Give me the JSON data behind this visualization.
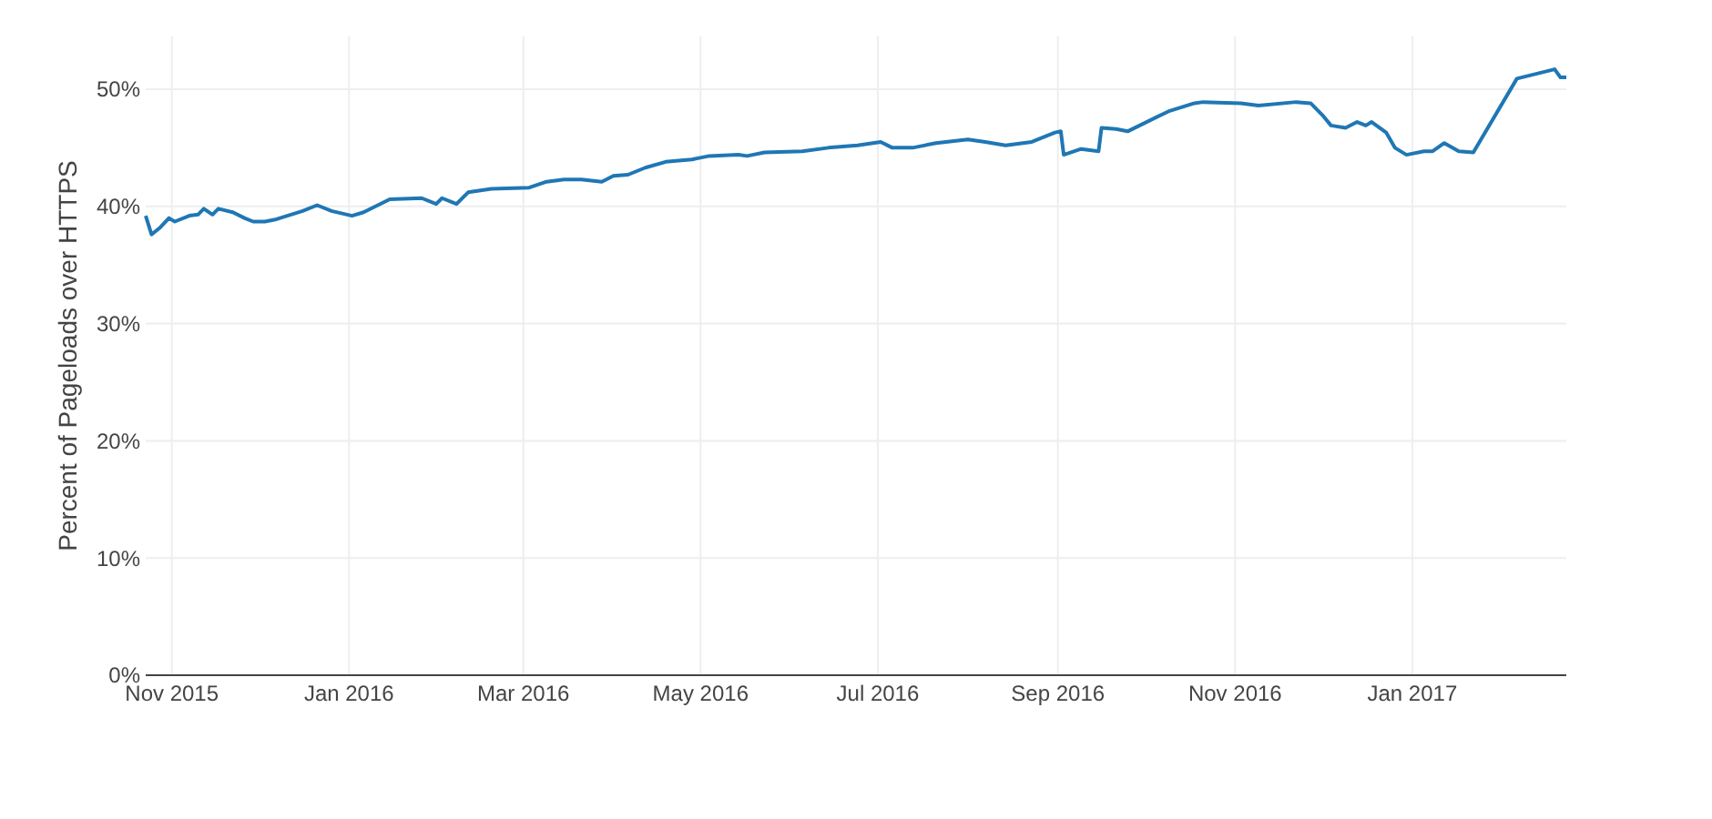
{
  "chart_data": {
    "type": "line",
    "ylabel": "Percent of Pageloads over HTTPS",
    "x": [
      "2015-10-23",
      "2015-10-25",
      "2015-10-28",
      "2015-10-31",
      "2015-11-02",
      "2015-11-07",
      "2015-11-10",
      "2015-11-12",
      "2015-11-15",
      "2015-11-17",
      "2015-11-22",
      "2015-11-26",
      "2015-11-29",
      "2015-12-03",
      "2015-12-07",
      "2015-12-12",
      "2015-12-16",
      "2015-12-21",
      "2015-12-26",
      "2016-01-02",
      "2016-01-06",
      "2016-01-15",
      "2016-01-26",
      "2016-01-31",
      "2016-02-02",
      "2016-02-07",
      "2016-02-11",
      "2016-02-19",
      "2016-03-03",
      "2016-03-09",
      "2016-03-15",
      "2016-03-21",
      "2016-03-28",
      "2016-04-01",
      "2016-04-06",
      "2016-04-12",
      "2016-04-19",
      "2016-04-28",
      "2016-05-04",
      "2016-05-14",
      "2016-05-17",
      "2016-05-23",
      "2016-06-05",
      "2016-06-14",
      "2016-06-24",
      "2016-07-02",
      "2016-07-06",
      "2016-07-13",
      "2016-07-21",
      "2016-08-01",
      "2016-08-07",
      "2016-08-14",
      "2016-08-23",
      "2016-08-31",
      "2016-09-02",
      "2016-09-03",
      "2016-09-09",
      "2016-09-15",
      "2016-09-16",
      "2016-09-21",
      "2016-09-25",
      "2016-10-09",
      "2016-10-18",
      "2016-10-21",
      "2016-11-03",
      "2016-11-09",
      "2016-11-22",
      "2016-11-27",
      "2016-12-01",
      "2016-12-04",
      "2016-12-09",
      "2016-12-13",
      "2016-12-16",
      "2016-12-18",
      "2016-12-23",
      "2016-12-26",
      "2016-12-30",
      "2017-01-05",
      "2017-01-08",
      "2017-01-12",
      "2017-01-17",
      "2017-01-22",
      "2017-02-06",
      "2017-02-19",
      "2017-02-21",
      "2017-02-23"
    ],
    "series": [
      {
        "color": "#1f77b4",
        "values": [
          39.2,
          37.6,
          38.2,
          39.0,
          38.7,
          39.2,
          39.3,
          39.8,
          39.3,
          39.8,
          39.5,
          39.0,
          38.7,
          38.7,
          38.9,
          39.3,
          39.6,
          40.1,
          39.6,
          39.2,
          39.5,
          40.6,
          40.7,
          40.2,
          40.7,
          40.2,
          41.2,
          41.5,
          41.6,
          42.1,
          42.3,
          42.3,
          42.1,
          42.6,
          42.7,
          43.3,
          43.8,
          44.0,
          44.3,
          44.4,
          44.3,
          44.6,
          44.7,
          45.0,
          45.2,
          45.5,
          45.0,
          45.0,
          45.4,
          45.7,
          45.5,
          45.2,
          45.5,
          46.3,
          46.4,
          44.4,
          44.9,
          44.7,
          46.7,
          46.6,
          46.4,
          48.1,
          48.8,
          48.9,
          48.8,
          48.6,
          48.9,
          48.8,
          47.8,
          46.9,
          46.7,
          47.2,
          46.9,
          47.2,
          46.3,
          45.0,
          44.4,
          44.7,
          44.7,
          45.4,
          44.7,
          44.6,
          50.9,
          51.7,
          51.0,
          51.0
        ]
      }
    ],
    "xlim": [
      "2015-10-23",
      "2017-02-23"
    ],
    "xticks": [
      {
        "value": "2015-11-01",
        "label": "Nov 2015"
      },
      {
        "value": "2016-01-01",
        "label": "Jan 2016"
      },
      {
        "value": "2016-03-01",
        "label": "Mar 2016"
      },
      {
        "value": "2016-05-01",
        "label": "May 2016"
      },
      {
        "value": "2016-07-01",
        "label": "Jul 2016"
      },
      {
        "value": "2016-09-01",
        "label": "Sep 2016"
      },
      {
        "value": "2016-11-01",
        "label": "Nov 2016"
      },
      {
        "value": "2017-01-01",
        "label": "Jan 2017"
      }
    ],
    "ylim": [
      0,
      54.5
    ],
    "yticks": [
      {
        "value": 0,
        "label": "0%"
      },
      {
        "value": 10,
        "label": "10%"
      },
      {
        "value": 20,
        "label": "20%"
      },
      {
        "value": 30,
        "label": "30%"
      },
      {
        "value": 40,
        "label": "40%"
      },
      {
        "value": 50,
        "label": "50%"
      }
    ],
    "grid": true,
    "marker": "none",
    "line_style": "solid"
  }
}
